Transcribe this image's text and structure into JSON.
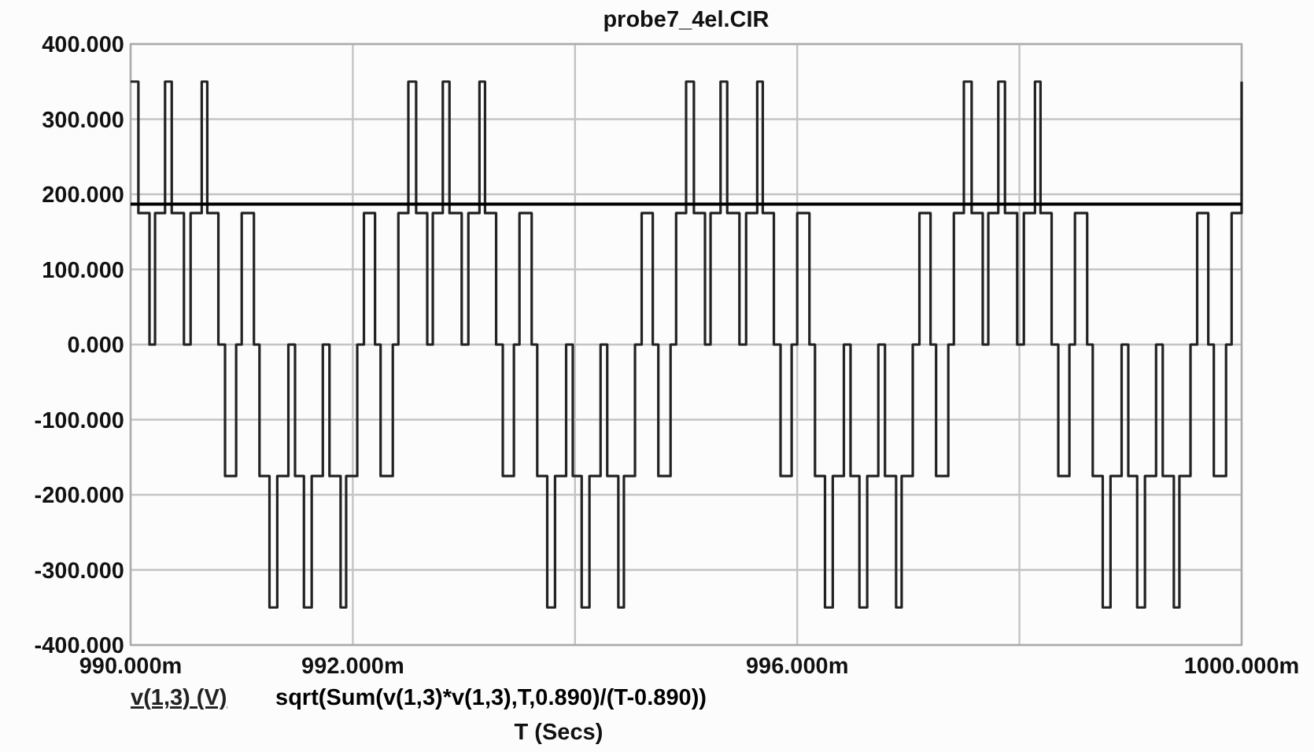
{
  "chart_data": {
    "type": "step",
    "title": "probe7_4el.CIR",
    "xlabel": "T (Secs)",
    "legend": "bottom",
    "grid": true,
    "marker": "none",
    "line_style": "solid",
    "xlim": [
      990,
      1000
    ],
    "xticks": [
      {
        "value": 990,
        "label": "990.000m"
      },
      {
        "value": 992,
        "label": "992.000m"
      },
      {
        "value": 994,
        "label": null
      },
      {
        "value": 996,
        "label": "996.000m"
      },
      {
        "value": 998,
        "label": null
      },
      {
        "value": 1000,
        "label": "1000.000m"
      }
    ],
    "ylim": [
      -400,
      400
    ],
    "yticks": [
      {
        "value": 400,
        "label": "400.000"
      },
      {
        "value": 300,
        "label": "300.000"
      },
      {
        "value": 200,
        "label": "200.000"
      },
      {
        "value": 100,
        "label": "100.000"
      },
      {
        "value": 0,
        "label": "0.000"
      },
      {
        "value": -100,
        "label": "-100.000"
      },
      {
        "value": -200,
        "label": "-200.000"
      },
      {
        "value": -300,
        "label": "-300.000"
      },
      {
        "value": -400,
        "label": "-400.000"
      }
    ],
    "series": [
      {
        "name": "v(1,3) (V)",
        "color": "#222222",
        "x": [
          990.0,
          990.07,
          990.17,
          990.22,
          990.31,
          990.37,
          990.48,
          990.54,
          990.64,
          990.69,
          990.79,
          990.85,
          990.95,
          991.0,
          991.11,
          991.16,
          991.25,
          991.32,
          991.42,
          991.48,
          991.56,
          991.63,
          991.73,
          991.79,
          991.89,
          991.94,
          992.04,
          992.1,
          992.2,
          992.25,
          992.36,
          992.41,
          992.5,
          992.57,
          992.67,
          992.72,
          992.81,
          992.87,
          992.98,
          993.04,
          993.14,
          993.19,
          993.29,
          993.35,
          993.45,
          993.5,
          993.61,
          993.66,
          993.75,
          993.82,
          993.92,
          993.98,
          994.06,
          994.13,
          994.23,
          994.29,
          994.39,
          994.44,
          994.54,
          994.6,
          994.7,
          994.75,
          994.86,
          994.91,
          995.0,
          995.07,
          995.17,
          995.22,
          995.31,
          995.37,
          995.48,
          995.54,
          995.64,
          995.69,
          995.79,
          995.85,
          995.95,
          996.0,
          996.11,
          996.16,
          996.25,
          996.32,
          996.42,
          996.48,
          996.56,
          996.63,
          996.73,
          996.79,
          996.89,
          996.94,
          997.04,
          997.1,
          997.2,
          997.25,
          997.36,
          997.41,
          997.5,
          997.57,
          997.67,
          997.72,
          997.81,
          997.87,
          997.98,
          998.04,
          998.14,
          998.19,
          998.29,
          998.35,
          998.45,
          998.5,
          998.61,
          998.66,
          998.75,
          998.82,
          998.92,
          998.98,
          999.06,
          999.13,
          999.23,
          999.29,
          999.39,
          999.44,
          999.54,
          999.6,
          999.7,
          999.75,
          999.86,
          999.91,
          1000.0
        ],
        "values": [
          350,
          175,
          0,
          175,
          350,
          175,
          0,
          175,
          350,
          175,
          0,
          -175,
          0,
          175,
          0,
          -175,
          -350,
          -175,
          0,
          -175,
          -350,
          -175,
          0,
          -175,
          -350,
          -175,
          0,
          175,
          0,
          -175,
          0,
          175,
          350,
          175,
          0,
          175,
          350,
          175,
          0,
          175,
          350,
          175,
          0,
          -175,
          0,
          175,
          0,
          -175,
          -350,
          -175,
          0,
          -175,
          -350,
          -175,
          0,
          -175,
          -350,
          -175,
          0,
          175,
          0,
          -175,
          0,
          175,
          350,
          175,
          0,
          175,
          350,
          175,
          0,
          175,
          350,
          175,
          0,
          -175,
          0,
          175,
          0,
          -175,
          -350,
          -175,
          0,
          -175,
          -350,
          -175,
          0,
          -175,
          -350,
          -175,
          0,
          175,
          0,
          -175,
          0,
          175,
          350,
          175,
          0,
          175,
          350,
          175,
          0,
          175,
          350,
          175,
          0,
          -175,
          0,
          175,
          0,
          -175,
          -350,
          -175,
          0,
          -175,
          -350,
          -175,
          0,
          -175,
          -350,
          -175,
          0,
          175,
          0,
          -175,
          0,
          175,
          350
        ]
      },
      {
        "name": "sqrt(Sum(v(1,3)*v(1,3),T,0.890)/(T-0.890))",
        "type": "line",
        "color": "#000000",
        "x": [
          990,
          1000
        ],
        "values": [
          187,
          187
        ]
      }
    ]
  }
}
